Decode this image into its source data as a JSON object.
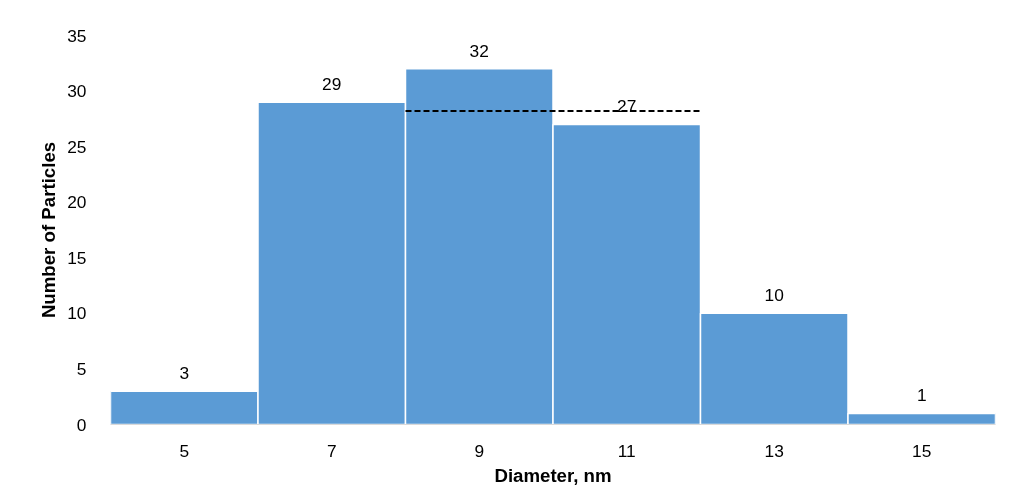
{
  "chart_data": {
    "type": "histogram",
    "xlabel": "Diameter, nm",
    "ylabel": "Number of Particles",
    "bins": [
      4,
      6,
      8,
      10,
      12,
      14,
      16
    ],
    "values": [
      3,
      29,
      32,
      27,
      10,
      1
    ],
    "color": "#5b9bd5",
    "xlim": [
      4,
      16
    ],
    "xticks": [
      5,
      7,
      9,
      11,
      13,
      15
    ],
    "ylim": [
      0,
      35
    ],
    "yticks": [
      0,
      5,
      10,
      15,
      20,
      25,
      30,
      35
    ],
    "value_labels": [
      "3",
      "29",
      "32",
      "27",
      "10",
      "1"
    ],
    "grid": false,
    "series": [
      {
        "type": "line",
        "x": [
          8,
          12
        ],
        "values": [
          28.2,
          28.2
        ],
        "color": "#000000",
        "line_style": "dashed"
      }
    ]
  }
}
